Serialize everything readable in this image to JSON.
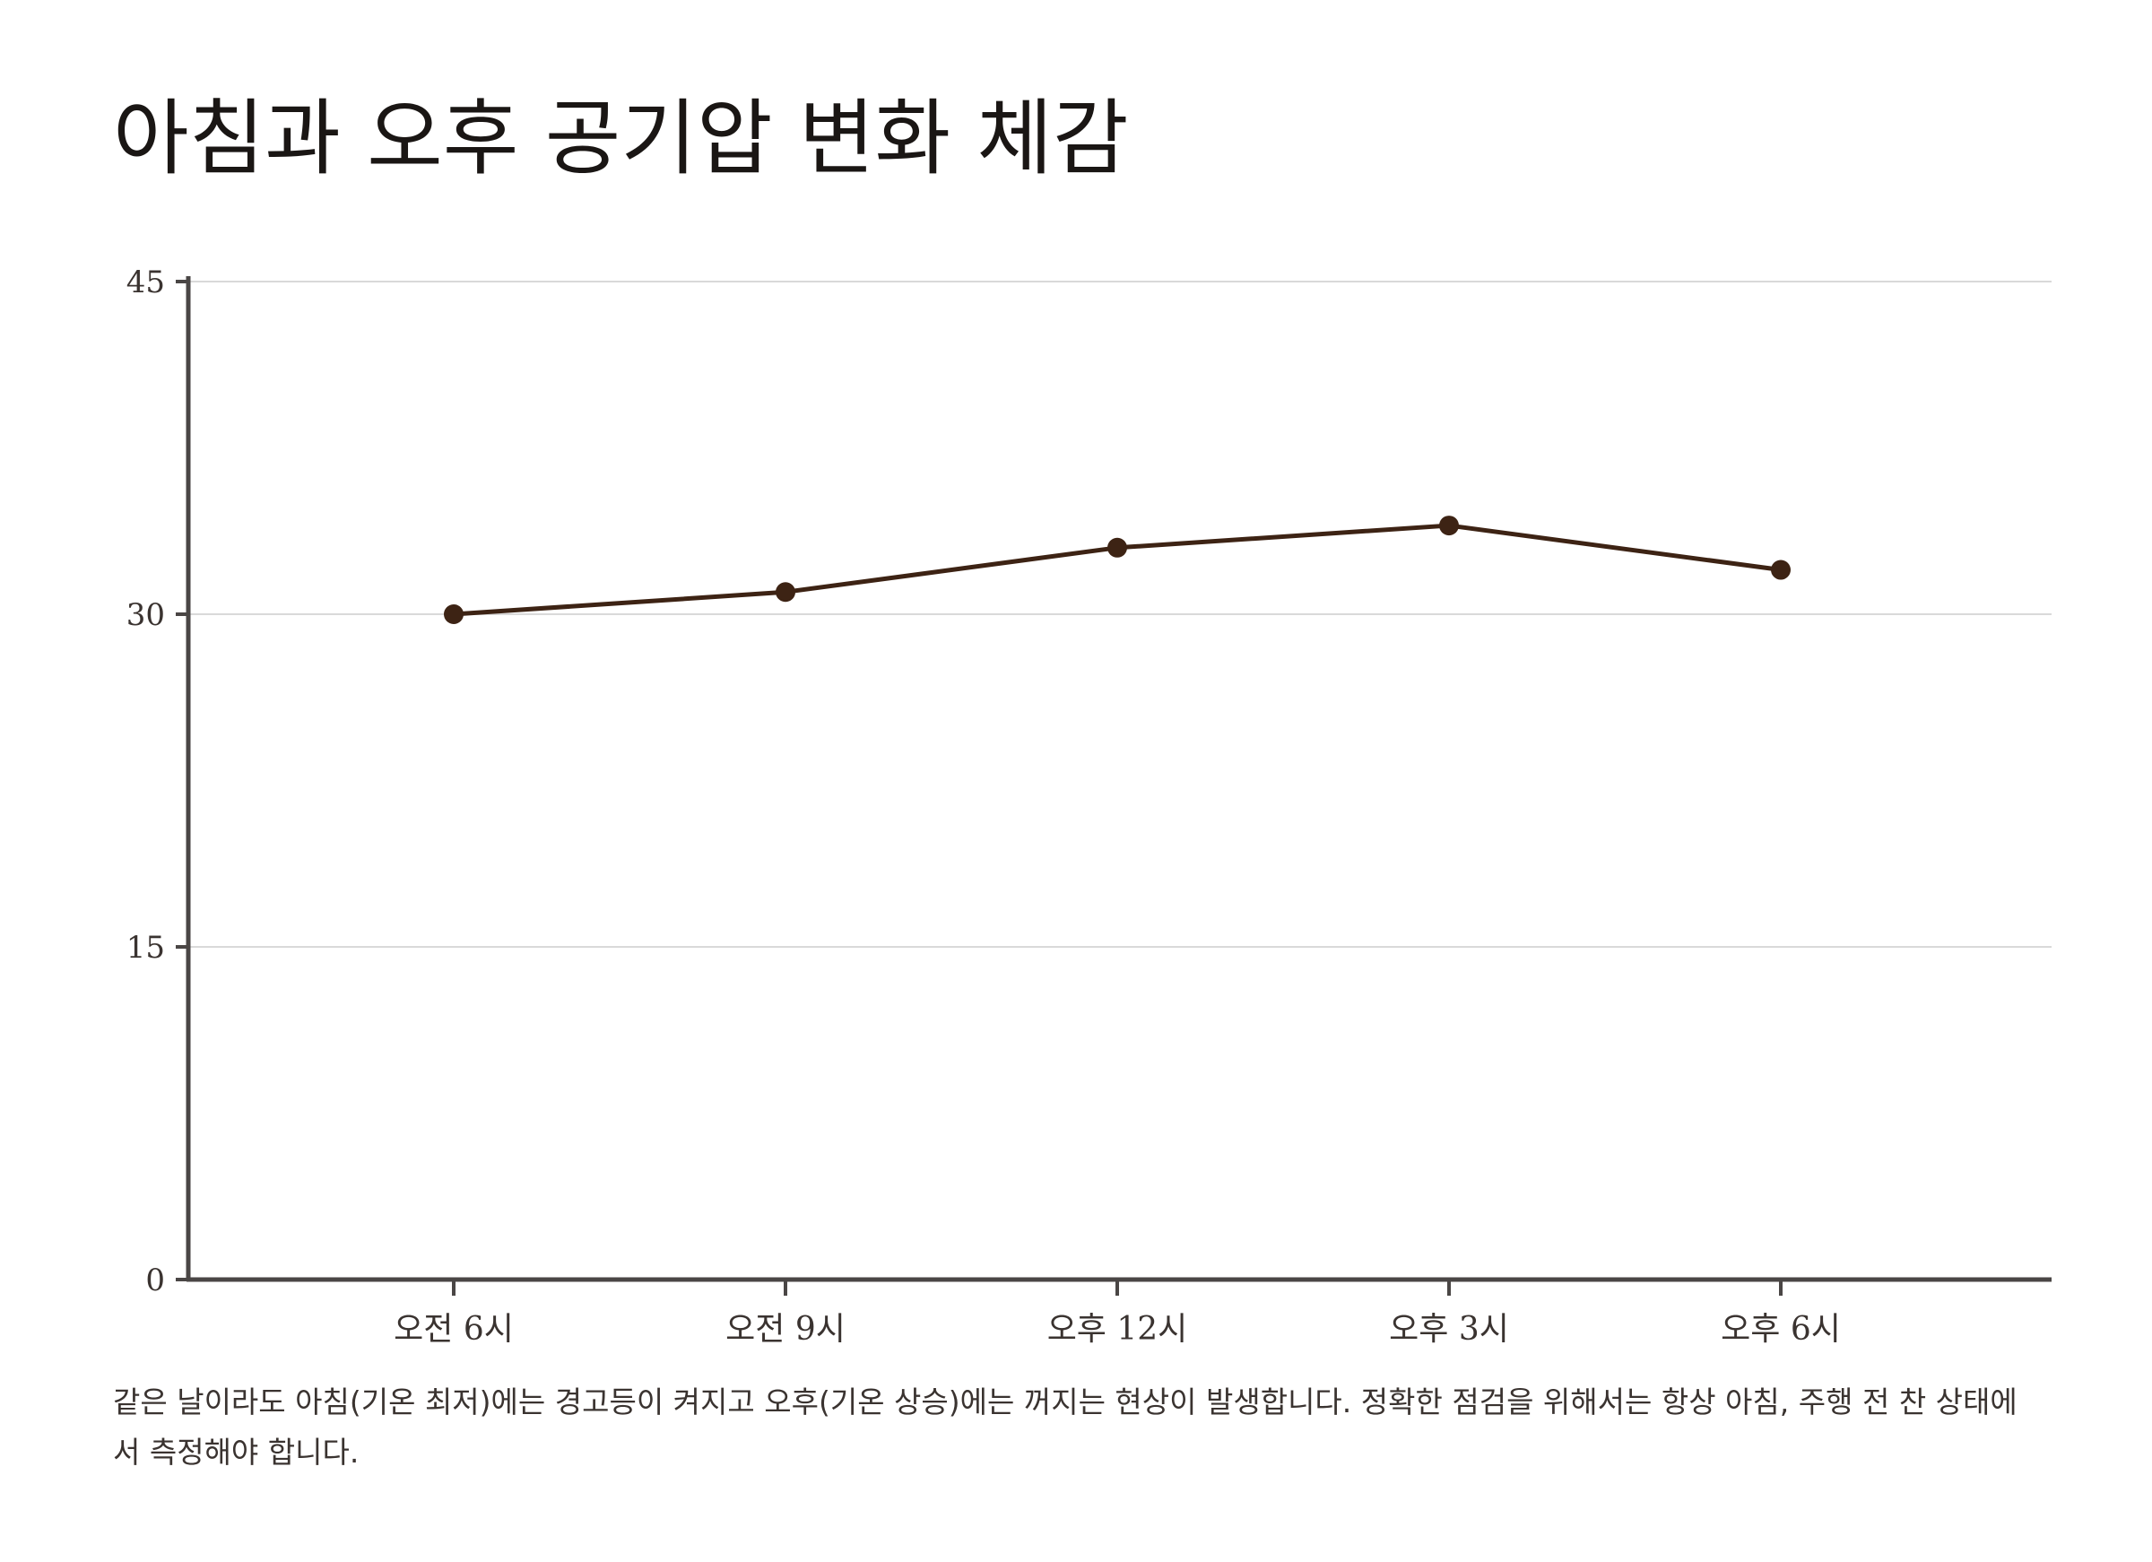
{
  "title": "아침과 오후 공기압 변화 체감",
  "caption": "같은 날이라도 아침(기온 최저)에는 경고등이 켜지고 오후(기온 상승)에는 꺼지는 현상이 발생합니다. 정확한 점검을 위해서는 항상 아침, 주행 전 찬 상태에서 측정해야 합니다.",
  "colors": {
    "line": "#3d2314",
    "axis": "#4a4645",
    "grid": "#d9d9d9"
  },
  "chart_data": {
    "type": "line",
    "title": "아침과 오후 공기압 변화 체감",
    "xlabel": "",
    "ylabel": "",
    "categories": [
      "오전 6시",
      "오전 9시",
      "오후 12시",
      "오후 3시",
      "오후 6시"
    ],
    "series": [
      {
        "values": [
          30,
          31,
          33,
          34,
          32
        ]
      }
    ],
    "ylim": [
      0,
      45
    ],
    "yticks": [
      0,
      15,
      30,
      45
    ],
    "grid": true,
    "legend": "none"
  }
}
